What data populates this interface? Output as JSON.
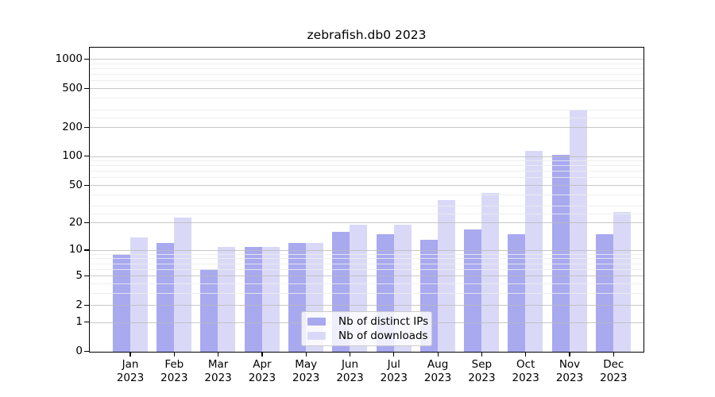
{
  "chart_data": {
    "type": "bar",
    "title": "zebrafish.db0 2023",
    "categories": [
      "Jan 2023",
      "Feb 2023",
      "Mar 2023",
      "Apr 2023",
      "May 2023",
      "Jun 2023",
      "Jul 2023",
      "Aug 2023",
      "Sep 2023",
      "Oct 2023",
      "Nov 2023",
      "Dec 2023"
    ],
    "series": [
      {
        "name": "Nb of distinct IPs",
        "color": "#a9a9f0",
        "values": [
          9,
          12,
          6,
          11,
          12,
          16,
          15,
          13,
          17,
          15,
          105,
          15
        ]
      },
      {
        "name": "Nb of downloads",
        "color": "#d9d9f7",
        "values": [
          14,
          23,
          11,
          11,
          12,
          19,
          19,
          35,
          42,
          115,
          300,
          26
        ]
      }
    ],
    "xlabel": "",
    "ylabel": "",
    "yscale": "log1p",
    "yticks": [
      0,
      1,
      2,
      5,
      10,
      20,
      50,
      100,
      200,
      500,
      1000
    ],
    "yminorticks": [
      3,
      4,
      6,
      7,
      8,
      9,
      25,
      30,
      40,
      60,
      70,
      80,
      90,
      250,
      300,
      400,
      600,
      700,
      800,
      900
    ],
    "ylim": [
      0,
      1307
    ],
    "grid": true,
    "legend_position": "lower center"
  }
}
